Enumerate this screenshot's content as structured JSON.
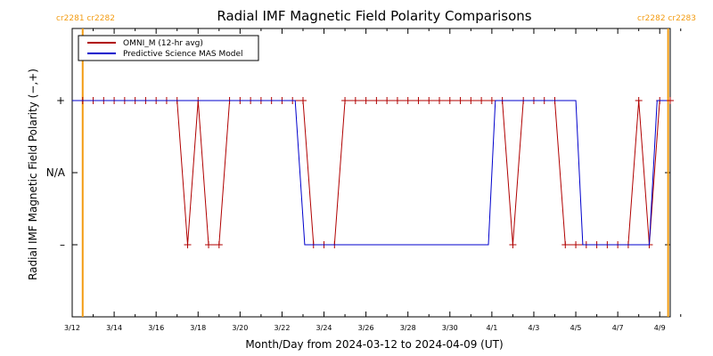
{
  "chart_data": {
    "type": "line",
    "title": "Radial IMF Magnetic Field Polarity Comparisons",
    "xlabel": "Month/Day from 2024-03-12 to 2024-04-09 (UT)",
    "ylabel": "Radial IMF Magnetic Field Polarity (−,+)",
    "x_unit": "days",
    "xlim": [
      "2024-03-12",
      "2024-04-09 12:00"
    ],
    "ylim": [
      -2,
      2
    ],
    "x_ticks": [
      {
        "t": "2024-03-12",
        "label": "3/12"
      },
      {
        "t": "2024-03-14",
        "label": "3/14"
      },
      {
        "t": "2024-03-16",
        "label": "3/16"
      },
      {
        "t": "2024-03-18",
        "label": "3/18"
      },
      {
        "t": "2024-03-20",
        "label": "3/20"
      },
      {
        "t": "2024-03-22",
        "label": "3/22"
      },
      {
        "t": "2024-03-24",
        "label": "3/24"
      },
      {
        "t": "2024-03-26",
        "label": "3/26"
      },
      {
        "t": "2024-03-28",
        "label": "3/28"
      },
      {
        "t": "2024-03-30",
        "label": "3/30"
      },
      {
        "t": "2024-04-01",
        "label": "4/1"
      },
      {
        "t": "2024-04-03",
        "label": "4/3"
      },
      {
        "t": "2024-04-05",
        "label": "4/5"
      },
      {
        "t": "2024-04-07",
        "label": "4/7"
      },
      {
        "t": "2024-04-09",
        "label": "4/9"
      }
    ],
    "y_ticks": [
      {
        "value": 1,
        "label": "+"
      },
      {
        "value": 0,
        "label": "N/A"
      },
      {
        "value": -1,
        "label": "–"
      }
    ],
    "carrington_markers": [
      {
        "t": "2024-03-12 12:00",
        "label": "cr2281 cr2282",
        "side": "left"
      },
      {
        "t": "2024-04-09 09:36",
        "label": "cr2282 cr2283",
        "side": "right"
      }
    ],
    "marker_color": "#f39c12",
    "legend_position": "top-left",
    "series": [
      {
        "name": "OMNI_M (12-hr avg)",
        "color": "#b00000",
        "marker": "plus",
        "points": [
          [
            "2024-03-12 12:00",
            1
          ],
          [
            "2024-03-13 00:00",
            1
          ],
          [
            "2024-03-13 12:00",
            1
          ],
          [
            "2024-03-14 00:00",
            1
          ],
          [
            "2024-03-14 12:00",
            1
          ],
          [
            "2024-03-15 00:00",
            1
          ],
          [
            "2024-03-15 12:00",
            1
          ],
          [
            "2024-03-16 00:00",
            1
          ],
          [
            "2024-03-16 12:00",
            1
          ],
          [
            "2024-03-17 00:00",
            1
          ],
          [
            "2024-03-17 12:00",
            -1
          ],
          [
            "2024-03-18 00:00",
            1
          ],
          [
            "2024-03-18 12:00",
            -1
          ],
          [
            "2024-03-19 00:00",
            -1
          ],
          [
            "2024-03-19 12:00",
            1
          ],
          [
            "2024-03-20 00:00",
            1
          ],
          [
            "2024-03-20 12:00",
            1
          ],
          [
            "2024-03-21 00:00",
            1
          ],
          [
            "2024-03-21 12:00",
            1
          ],
          [
            "2024-03-22 00:00",
            1
          ],
          [
            "2024-03-22 12:00",
            1
          ],
          [
            "2024-03-23 00:00",
            1
          ],
          [
            "2024-03-23 12:00",
            -1
          ],
          [
            "2024-03-24 00:00",
            -1
          ],
          [
            "2024-03-24 12:00",
            -1
          ],
          [
            "2024-03-25 00:00",
            1
          ],
          [
            "2024-03-25 12:00",
            1
          ],
          [
            "2024-03-26 00:00",
            1
          ],
          [
            "2024-03-26 12:00",
            1
          ],
          [
            "2024-03-27 00:00",
            1
          ],
          [
            "2024-03-27 12:00",
            1
          ],
          [
            "2024-03-28 00:00",
            1
          ],
          [
            "2024-03-28 12:00",
            1
          ],
          [
            "2024-03-29 00:00",
            1
          ],
          [
            "2024-03-29 12:00",
            1
          ],
          [
            "2024-03-30 00:00",
            1
          ],
          [
            "2024-03-30 12:00",
            1
          ],
          [
            "2024-03-31 00:00",
            1
          ],
          [
            "2024-03-31 12:00",
            1
          ],
          [
            "2024-04-01 00:00",
            1
          ],
          [
            "2024-04-01 12:00",
            1
          ],
          [
            "2024-04-02 00:00",
            -1
          ],
          [
            "2024-04-02 12:00",
            1
          ],
          [
            "2024-04-03 00:00",
            1
          ],
          [
            "2024-04-03 12:00",
            1
          ],
          [
            "2024-04-04 00:00",
            1
          ],
          [
            "2024-04-04 12:00",
            -1
          ],
          [
            "2024-04-05 00:00",
            -1
          ],
          [
            "2024-04-05 12:00",
            -1
          ],
          [
            "2024-04-06 00:00",
            -1
          ],
          [
            "2024-04-06 12:00",
            -1
          ],
          [
            "2024-04-07 00:00",
            -1
          ],
          [
            "2024-04-07 12:00",
            -1
          ],
          [
            "2024-04-08 00:00",
            1
          ],
          [
            "2024-04-08 12:00",
            -1
          ],
          [
            "2024-04-09 00:00",
            1
          ],
          [
            "2024-04-09 12:00",
            1
          ]
        ]
      },
      {
        "name": "Predictive Science MAS Model",
        "color": "#0000cc",
        "marker": "none",
        "points": [
          [
            "2024-03-12 00:00",
            1
          ],
          [
            "2024-03-22 15:00",
            1
          ],
          [
            "2024-03-23 02:00",
            -1
          ],
          [
            "2024-03-31 20:00",
            -1
          ],
          [
            "2024-04-01 04:00",
            1
          ],
          [
            "2024-04-05 00:00",
            1
          ],
          [
            "2024-04-05 08:00",
            -1
          ],
          [
            "2024-04-08 12:00",
            -1
          ],
          [
            "2024-04-08 21:00",
            1
          ],
          [
            "2024-04-09 08:00",
            1
          ]
        ]
      }
    ]
  }
}
